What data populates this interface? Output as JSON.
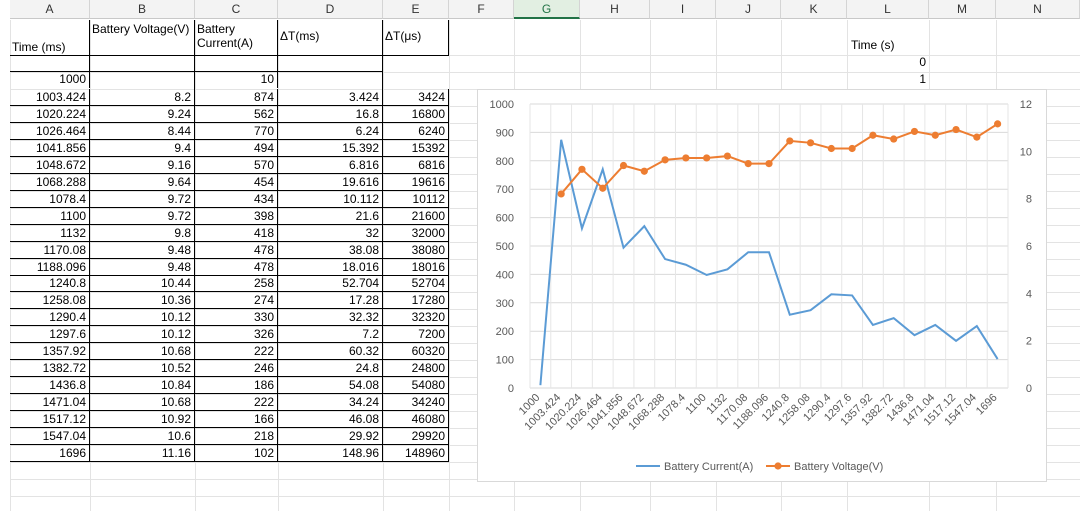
{
  "columns": [
    "A",
    "B",
    "C",
    "D",
    "E",
    "F",
    "G",
    "H",
    "I",
    "J",
    "K",
    "L",
    "M",
    "N"
  ],
  "selected_column": "G",
  "headers": {
    "time": "Time (ms)",
    "voltage": "Battery Voltage(V)",
    "current": "Battery Current(A)",
    "dt_ms": "ΔT(ms)",
    "dt_us": "ΔT(μs)",
    "time_s": "Time (s)"
  },
  "l_values": [
    "0",
    "1"
  ],
  "first_row": {
    "time": "1000",
    "current": "10"
  },
  "rows": [
    [
      "1003.424",
      "8.2",
      "874",
      "3.424",
      "3424"
    ],
    [
      "1020.224",
      "9.24",
      "562",
      "16.8",
      "16800"
    ],
    [
      "1026.464",
      "8.44",
      "770",
      "6.24",
      "6240"
    ],
    [
      "1041.856",
      "9.4",
      "494",
      "15.392",
      "15392"
    ],
    [
      "1048.672",
      "9.16",
      "570",
      "6.816",
      "6816"
    ],
    [
      "1068.288",
      "9.64",
      "454",
      "19.616",
      "19616"
    ],
    [
      "1078.4",
      "9.72",
      "434",
      "10.112",
      "10112"
    ],
    [
      "1100",
      "9.72",
      "398",
      "21.6",
      "21600"
    ],
    [
      "1132",
      "9.8",
      "418",
      "32",
      "32000"
    ],
    [
      "1170.08",
      "9.48",
      "478",
      "38.08",
      "38080"
    ],
    [
      "1188.096",
      "9.48",
      "478",
      "18.016",
      "18016"
    ],
    [
      "1240.8",
      "10.44",
      "258",
      "52.704",
      "52704"
    ],
    [
      "1258.08",
      "10.36",
      "274",
      "17.28",
      "17280"
    ],
    [
      "1290.4",
      "10.12",
      "330",
      "32.32",
      "32320"
    ],
    [
      "1297.6",
      "10.12",
      "326",
      "7.2",
      "7200"
    ],
    [
      "1357.92",
      "10.68",
      "222",
      "60.32",
      "60320"
    ],
    [
      "1382.72",
      "10.52",
      "246",
      "24.8",
      "24800"
    ],
    [
      "1436.8",
      "10.84",
      "186",
      "54.08",
      "54080"
    ],
    [
      "1471.04",
      "10.68",
      "222",
      "34.24",
      "34240"
    ],
    [
      "1517.12",
      "10.92",
      "166",
      "46.08",
      "46080"
    ],
    [
      "1547.04",
      "10.6",
      "218",
      "29.92",
      "29920"
    ],
    [
      "1696",
      "11.16",
      "102",
      "148.96",
      "148960"
    ]
  ],
  "chart_data": {
    "type": "line",
    "categories": [
      "1000",
      "1003.424",
      "1020.224",
      "1026.464",
      "1041.856",
      "1048.672",
      "1068.288",
      "1078.4",
      "1100",
      "1132",
      "1170.08",
      "1188.096",
      "1240.8",
      "1258.08",
      "1290.4",
      "1297.6",
      "1357.92",
      "1382.72",
      "1436.8",
      "1471.04",
      "1517.12",
      "1547.04",
      "1696"
    ],
    "series": [
      {
        "name": "Battery Current(A)",
        "axis": "left",
        "color": "#5b9bd5",
        "values": [
          10,
          874,
          562,
          770,
          494,
          570,
          454,
          434,
          398,
          418,
          478,
          478,
          258,
          274,
          330,
          326,
          222,
          246,
          186,
          222,
          166,
          218,
          102
        ]
      },
      {
        "name": "Battery Voltage(V)",
        "axis": "right",
        "color": "#ed7d31",
        "values": [
          null,
          8.2,
          9.24,
          8.44,
          9.4,
          9.16,
          9.64,
          9.72,
          9.72,
          9.8,
          9.48,
          9.48,
          10.44,
          10.36,
          10.12,
          10.12,
          10.68,
          10.52,
          10.84,
          10.68,
          10.92,
          10.6,
          11.16
        ]
      }
    ],
    "ylim_left": [
      0,
      1000
    ],
    "yticks_left": [
      "0",
      "100",
      "200",
      "300",
      "400",
      "500",
      "600",
      "700",
      "800",
      "900",
      "1000"
    ],
    "ylim_right": [
      0,
      12
    ],
    "yticks_right": [
      "0",
      "2",
      "4",
      "6",
      "8",
      "10",
      "12"
    ],
    "grid": true,
    "legend": "bottom"
  }
}
